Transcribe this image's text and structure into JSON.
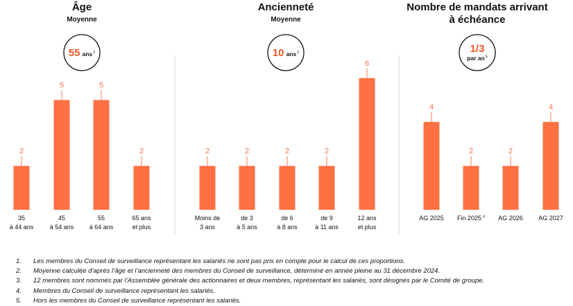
{
  "colors": {
    "bar": "#ff7043",
    "accent": "#f15a24",
    "divider": "#cfcfcf",
    "text": "#111111"
  },
  "chart_data": [
    {
      "type": "bar",
      "title": "Âge",
      "subtitle": "Moyenne",
      "highlight": {
        "value": "55",
        "unit": "ans",
        "note": "2"
      },
      "categories": [
        [
          "35",
          "à 44 ans"
        ],
        [
          "45",
          "à 54 ans"
        ],
        [
          "55",
          "à 64 ans"
        ],
        [
          "65 ans",
          "et plus"
        ]
      ],
      "values": [
        2,
        5,
        5,
        2
      ],
      "ylim": [
        0,
        6
      ]
    },
    {
      "type": "bar",
      "title": "Ancienneté",
      "subtitle": "Moyenne",
      "highlight": {
        "value": "10",
        "unit": "ans",
        "note": "2"
      },
      "categories": [
        [
          "Moins de",
          "3 ans"
        ],
        [
          "de 3",
          "à 5 ans"
        ],
        [
          "de 6",
          "à 8 ans"
        ],
        [
          "de 9",
          "à 11 ans"
        ],
        [
          "12 ans",
          "et plus"
        ]
      ],
      "values": [
        2,
        2,
        2,
        2,
        6
      ],
      "ylim": [
        0,
        6
      ]
    },
    {
      "type": "bar",
      "title": [
        "Nombre de mandats arrivant",
        "à échéance"
      ],
      "subtitle": "",
      "highlight": {
        "value": "1/3",
        "unit": "par an",
        "note": "5"
      },
      "categories": [
        [
          "AG 2025"
        ],
        [
          "Fin 2025",
          "4"
        ],
        [
          "AG 2026"
        ],
        [
          "AG 2027"
        ]
      ],
      "values": [
        4,
        2,
        2,
        4
      ],
      "ylim": [
        0,
        6
      ]
    }
  ],
  "footnotes": [
    {
      "num": "1.",
      "text": "Les membres du Conseil de surveillance représentant les salariés ne sont pas pris en compte pour le calcul de ces proportions."
    },
    {
      "num": "2.",
      "text": "Moyenne calculée d’après l’âge et l’ancienneté des membres du Conseil de surveillance, déterminé en année pleine au 31 décembre 2024."
    },
    {
      "num": "3.",
      "text": "12 membres sont nommés par l’Assemblée générale des actionnaires et deux membres, représentant les salariés, sont désignés par le Comité de groupe."
    },
    {
      "num": "4.",
      "text": "Membres du Conseil de surveillance représentant les salariés."
    },
    {
      "num": "5.",
      "text": "Hors les membres du Conseil de surveillance représentant les salariés."
    }
  ]
}
